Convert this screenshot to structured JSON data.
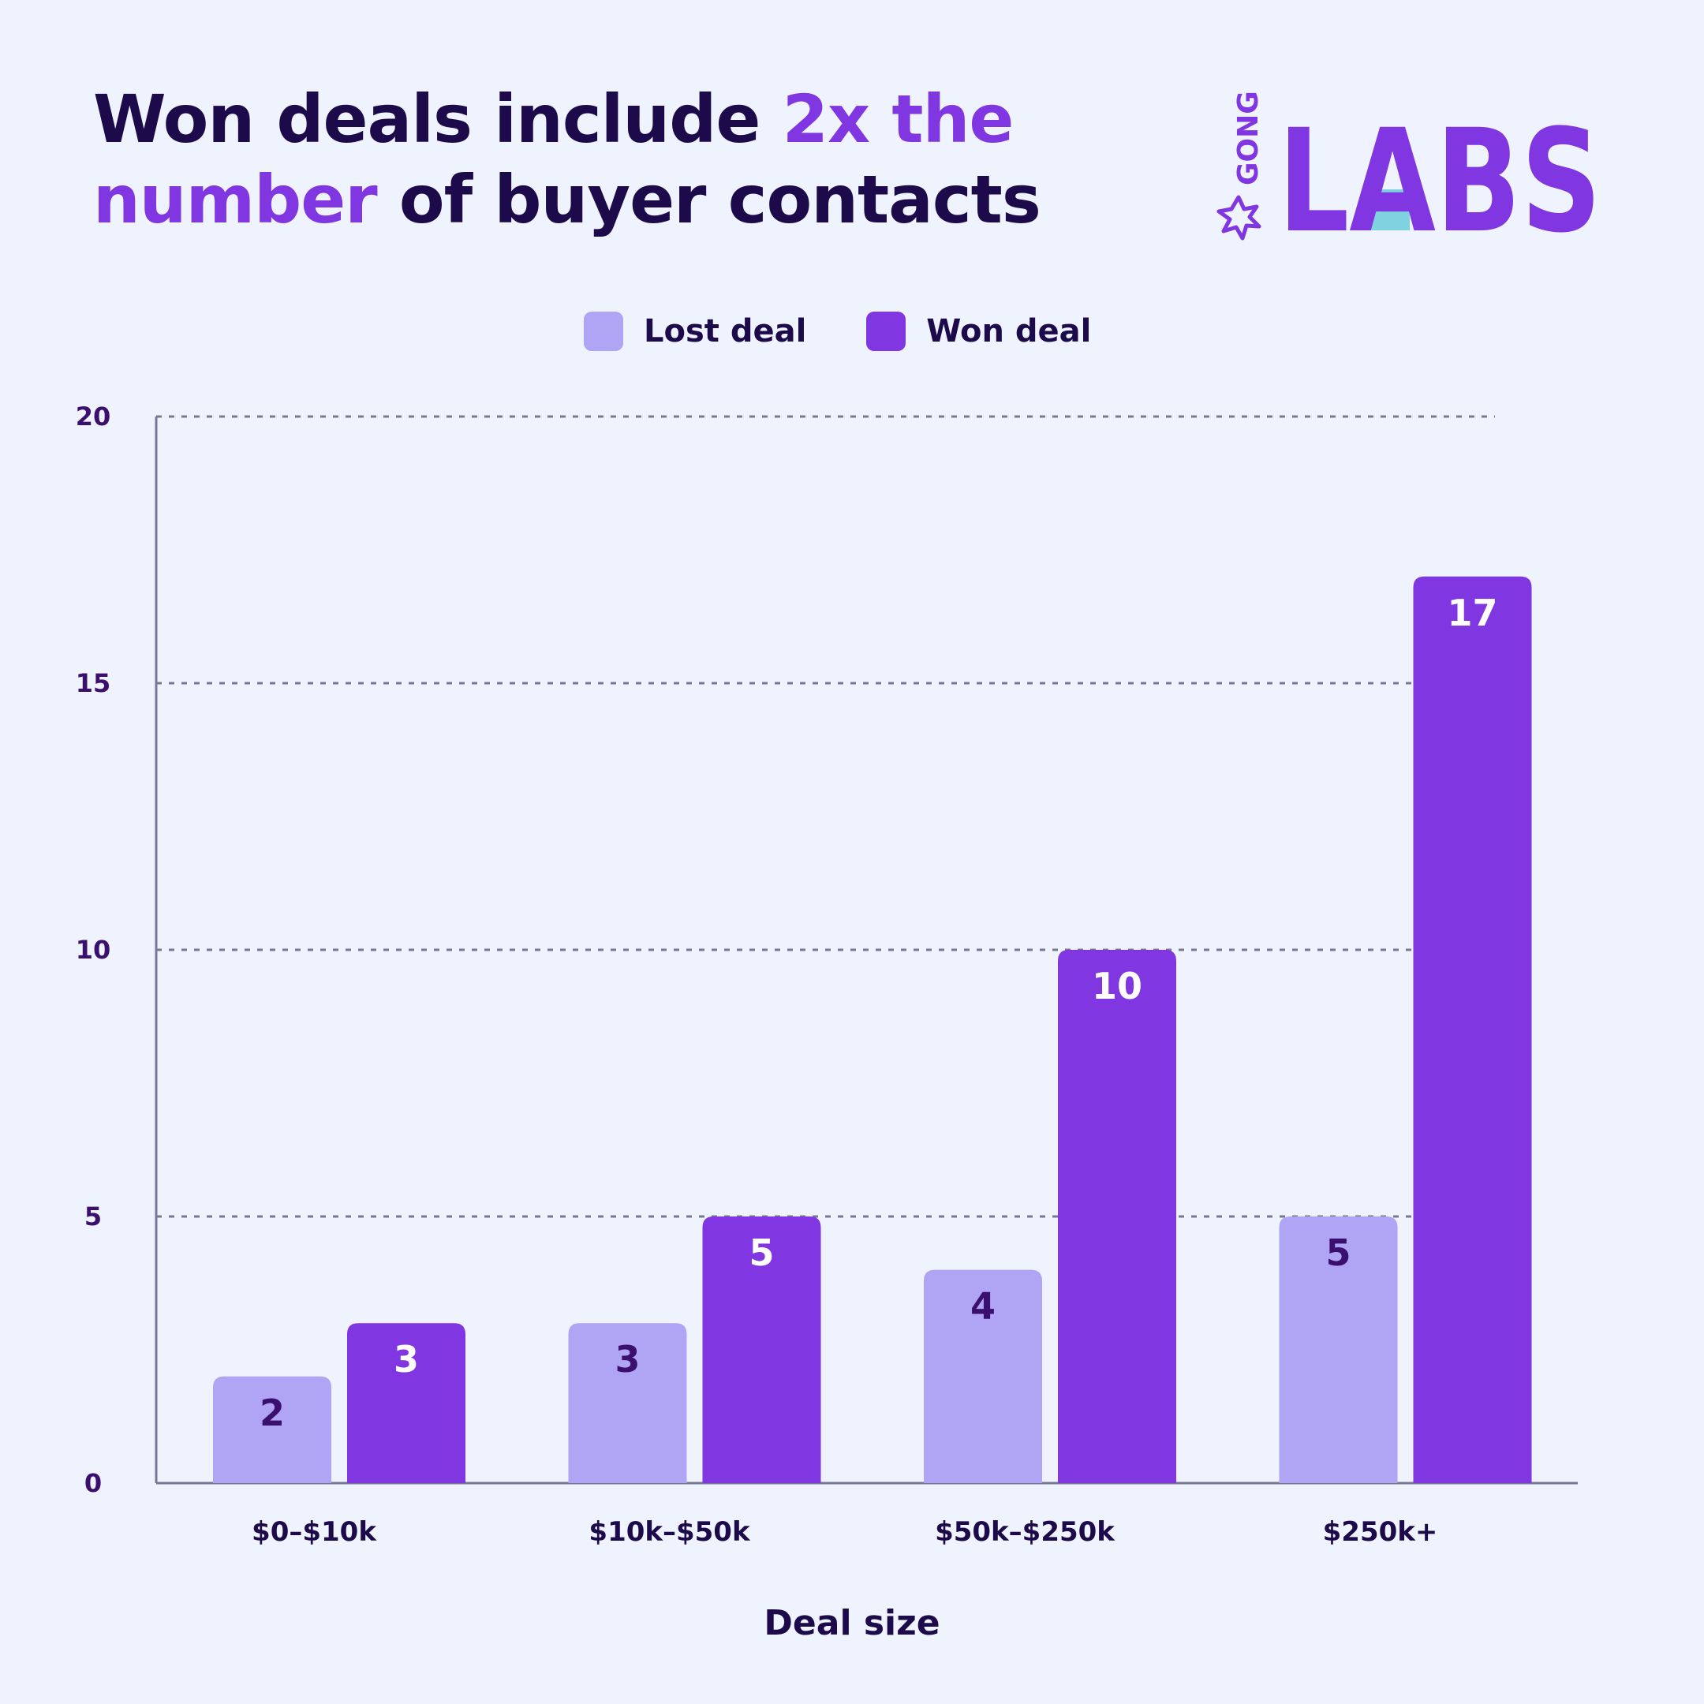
{
  "title": {
    "part1": "Won deals include ",
    "highlight1": "2x the",
    "highlight2": "number",
    "part2": " of buyer contacts"
  },
  "logo": {
    "small_text": "GONG",
    "big_text": "LABS"
  },
  "colors": {
    "lost": "#b0a4f5",
    "won": "#8036e0",
    "accent": "#8036e0",
    "lost_label": "#3a0f6e",
    "won_label": "#ffffff",
    "flask": "#7fd3e0"
  },
  "chart_data": {
    "type": "bar",
    "categories": [
      "$0–$10k",
      "$10k–$50k",
      "$50k–$250k",
      "$250k+"
    ],
    "series": [
      {
        "name": "Lost deal",
        "values": [
          2,
          3,
          4,
          5
        ]
      },
      {
        "name": "Won deal",
        "values": [
          3,
          5,
          10,
          17
        ]
      }
    ],
    "xlabel": "Deal size",
    "ylabel": "",
    "ylim": [
      0,
      20
    ],
    "yticks": [
      0,
      5,
      10,
      15,
      20
    ],
    "grid": true,
    "legend": "top-center"
  }
}
